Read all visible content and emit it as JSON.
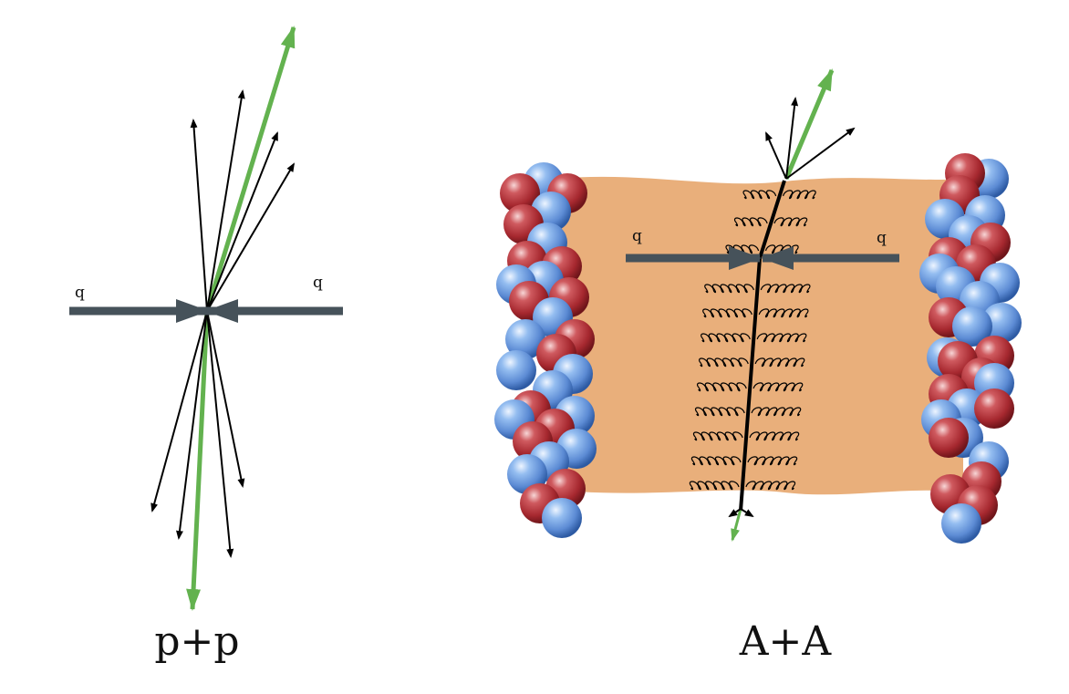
{
  "panels": {
    "pp": {
      "caption": "p+p",
      "quark_left_label": "q",
      "quark_right_label": "q"
    },
    "aa": {
      "caption": "A+A",
      "quark_left_label": "q",
      "quark_right_label": "q"
    }
  },
  "colors": {
    "quark_arrow": "#46525a",
    "leading_jet": "#63b24f",
    "particle": "#000000",
    "medium": "#e9af7b",
    "proton_red": "#b8323b",
    "neutron_blue": "#6f9fdc"
  }
}
